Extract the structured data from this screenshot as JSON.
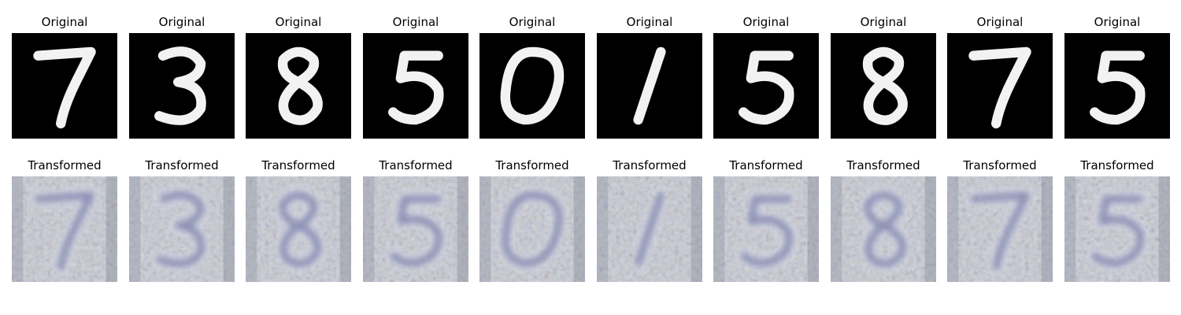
{
  "labels": {
    "original": "Original",
    "transformed": "Transformed"
  },
  "colors": {
    "original_bg": "#000000",
    "digit_stroke": "#f2f2f2",
    "transformed_bg": "#c9ccd6",
    "transformed_digit": "#5a5f95"
  },
  "columns": [
    {
      "digit": "7"
    },
    {
      "digit": "3"
    },
    {
      "digit": "8"
    },
    {
      "digit": "5"
    },
    {
      "digit": "0"
    },
    {
      "digit": "1"
    },
    {
      "digit": "5"
    },
    {
      "digit": "8"
    },
    {
      "digit": "7"
    },
    {
      "digit": "5"
    }
  ]
}
